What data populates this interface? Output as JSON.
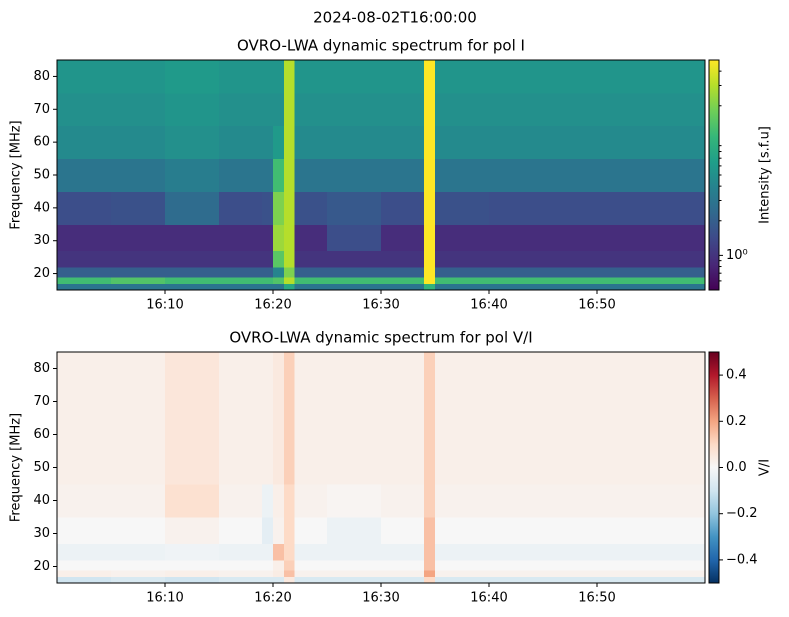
{
  "suptitle": "2024-08-02T16:00:00",
  "chart_data": [
    {
      "type": "heatmap",
      "title": "OVRO-LWA dynamic spectrum for pol I",
      "ylabel": "Frequency [MHz]",
      "x": [
        "16:00",
        "16:05",
        "16:10",
        "16:15",
        "16:19",
        "16:20",
        "16:21",
        "16:22",
        "16:25",
        "16:30",
        "16:34",
        "16:35",
        "16:36",
        "16:40",
        "16:45",
        "16:50",
        "16:55",
        "17:00"
      ],
      "y": [
        15,
        17,
        19,
        22,
        27,
        35,
        45,
        55,
        65,
        75,
        85
      ],
      "z": [
        [
          3,
          3,
          3,
          3,
          3,
          3,
          8,
          3,
          3,
          3,
          10,
          3,
          3,
          3,
          3,
          3,
          3
        ],
        [
          12,
          14,
          12,
          12,
          12,
          14,
          30,
          12,
          12,
          12,
          50,
          12,
          12,
          12,
          12,
          12,
          12
        ],
        [
          2,
          2,
          2,
          2,
          2,
          4,
          20,
          2,
          2,
          2,
          50,
          2,
          2,
          2,
          2,
          2,
          2
        ],
        [
          1,
          1,
          1,
          1,
          1,
          15,
          30,
          1,
          1,
          1,
          50,
          1,
          1,
          1,
          1,
          1,
          1
        ],
        [
          0.9,
          0.9,
          0.9,
          0.9,
          0.9,
          25,
          30,
          0.9,
          1.5,
          0.9,
          50,
          0.9,
          0.9,
          0.9,
          0.9,
          0.9,
          0.9
        ],
        [
          1.5,
          1.6,
          2.5,
          1.5,
          1.6,
          20,
          30,
          1.6,
          1.8,
          1.5,
          50,
          1.6,
          1.6,
          1.5,
          1.5,
          1.5,
          1.5
        ],
        [
          3,
          3,
          3.5,
          3,
          3,
          12,
          30,
          3,
          3,
          3,
          50,
          3,
          3,
          3,
          3,
          3,
          3
        ],
        [
          4.5,
          4.5,
          5,
          4.5,
          4.5,
          6,
          30,
          4.5,
          4.5,
          4.5,
          50,
          4.5,
          4.5,
          4.5,
          4.5,
          4.5,
          4.5
        ],
        [
          5,
          5,
          5.5,
          5,
          5,
          5,
          30,
          5,
          5,
          5,
          50,
          5,
          5,
          5,
          5,
          5,
          5
        ],
        [
          5.5,
          5.5,
          6,
          5.5,
          5.5,
          5.5,
          30,
          5.5,
          5.5,
          5.5,
          50,
          5.5,
          5.5,
          5.5,
          5.5,
          5.5,
          5.5
        ]
      ],
      "xlim": [
        "16:00",
        "17:00"
      ],
      "xticks": [
        "16:10",
        "16:20",
        "16:30",
        "16:40",
        "16:50"
      ],
      "ylim": [
        15,
        85
      ],
      "yticks": [
        20,
        30,
        40,
        50,
        60,
        70,
        80
      ],
      "colorbar": {
        "label": "Intensity [s.f.u]",
        "scale": "log",
        "lim": [
          0.5,
          50
        ],
        "ticks": [
          {
            "value": 1,
            "label": "10⁰"
          }
        ],
        "minor_ticks": [
          0.6,
          0.7,
          0.8,
          0.9,
          2,
          3,
          4,
          5,
          6,
          7,
          8,
          9,
          20,
          30,
          40
        ],
        "colormap": [
          "#440154",
          "#482878",
          "#3e4989",
          "#31688e",
          "#26828e",
          "#1f9e89",
          "#35b779",
          "#6ece58",
          "#b5de2b",
          "#fde725"
        ]
      }
    },
    {
      "type": "heatmap",
      "title": "OVRO-LWA dynamic spectrum for pol V/I",
      "ylabel": "Frequency [MHz]",
      "x": [
        "16:00",
        "16:05",
        "16:10",
        "16:15",
        "16:19",
        "16:20",
        "16:21",
        "16:22",
        "16:25",
        "16:30",
        "16:34",
        "16:35",
        "16:36",
        "16:40",
        "16:45",
        "16:50",
        "16:55",
        "17:00"
      ],
      "y": [
        15,
        17,
        19,
        22,
        27,
        35,
        45,
        55,
        65,
        75,
        85
      ],
      "z": [
        [
          -0.1,
          -0.08,
          -0.1,
          -0.08,
          -0.08,
          -0.08,
          0.05,
          -0.08,
          -0.08,
          -0.08,
          0.1,
          -0.08,
          -0.08,
          -0.08,
          -0.08,
          -0.08,
          -0.08
        ],
        [
          0.03,
          0.02,
          0.03,
          0.02,
          0.02,
          0.04,
          0.15,
          0.02,
          0.02,
          0.02,
          0.2,
          0.02,
          0.02,
          0.02,
          0.02,
          0.02,
          0.02
        ],
        [
          0,
          0,
          0,
          0,
          0,
          0.03,
          0.12,
          0,
          0,
          0,
          0.15,
          0,
          0,
          0,
          0,
          0,
          0
        ],
        [
          -0.03,
          -0.03,
          -0.02,
          -0.03,
          -0.03,
          0.15,
          0.1,
          -0.03,
          -0.03,
          -0.03,
          0.15,
          -0.03,
          -0.03,
          -0.03,
          -0.03,
          -0.03,
          -0.03
        ],
        [
          0,
          0,
          0.02,
          0,
          -0.05,
          0.02,
          0.1,
          0,
          -0.03,
          0,
          0.15,
          0,
          0,
          0,
          0,
          0,
          0
        ],
        [
          0.02,
          0.02,
          0.08,
          0.02,
          -0.03,
          0.03,
          0.1,
          0.02,
          0.01,
          0.02,
          0.12,
          0.02,
          0.02,
          0.02,
          0.02,
          0.02,
          0.02
        ],
        [
          0.03,
          0.03,
          0.06,
          0.03,
          0.03,
          0.05,
          0.12,
          0.03,
          0.03,
          0.03,
          0.12,
          0.03,
          0.03,
          0.03,
          0.03,
          0.03,
          0.03
        ],
        [
          0.03,
          0.03,
          0.06,
          0.03,
          0.03,
          0.05,
          0.12,
          0.03,
          0.03,
          0.03,
          0.12,
          0.03,
          0.03,
          0.03,
          0.03,
          0.03,
          0.03
        ],
        [
          0.03,
          0.03,
          0.06,
          0.03,
          0.03,
          0.05,
          0.12,
          0.03,
          0.03,
          0.03,
          0.12,
          0.03,
          0.03,
          0.03,
          0.03,
          0.03,
          0.03
        ],
        [
          0.03,
          0.03,
          0.06,
          0.03,
          0.03,
          0.05,
          0.12,
          0.03,
          0.03,
          0.03,
          0.12,
          0.03,
          0.03,
          0.03,
          0.03,
          0.03,
          0.03
        ]
      ],
      "xlim": [
        "16:00",
        "17:00"
      ],
      "xticks": [
        "16:10",
        "16:20",
        "16:30",
        "16:40",
        "16:50"
      ],
      "ylim": [
        15,
        85
      ],
      "yticks": [
        20,
        30,
        40,
        50,
        60,
        70,
        80
      ],
      "colorbar": {
        "label": "V/I",
        "scale": "linear",
        "lim": [
          -0.5,
          0.5
        ],
        "ticks": [
          {
            "value": -0.4,
            "label": "−0.4"
          },
          {
            "value": -0.2,
            "label": "−0.2"
          },
          {
            "value": 0,
            "label": "0.0"
          },
          {
            "value": 0.2,
            "label": "0.2"
          },
          {
            "value": 0.4,
            "label": "0.4"
          }
        ],
        "minor_ticks": [],
        "colormap": [
          "#053061",
          "#2166ac",
          "#4393c3",
          "#92c5de",
          "#d1e5f0",
          "#f7f7f7",
          "#fddbc7",
          "#f4a582",
          "#d6604d",
          "#b2182b",
          "#67001f"
        ]
      }
    }
  ]
}
